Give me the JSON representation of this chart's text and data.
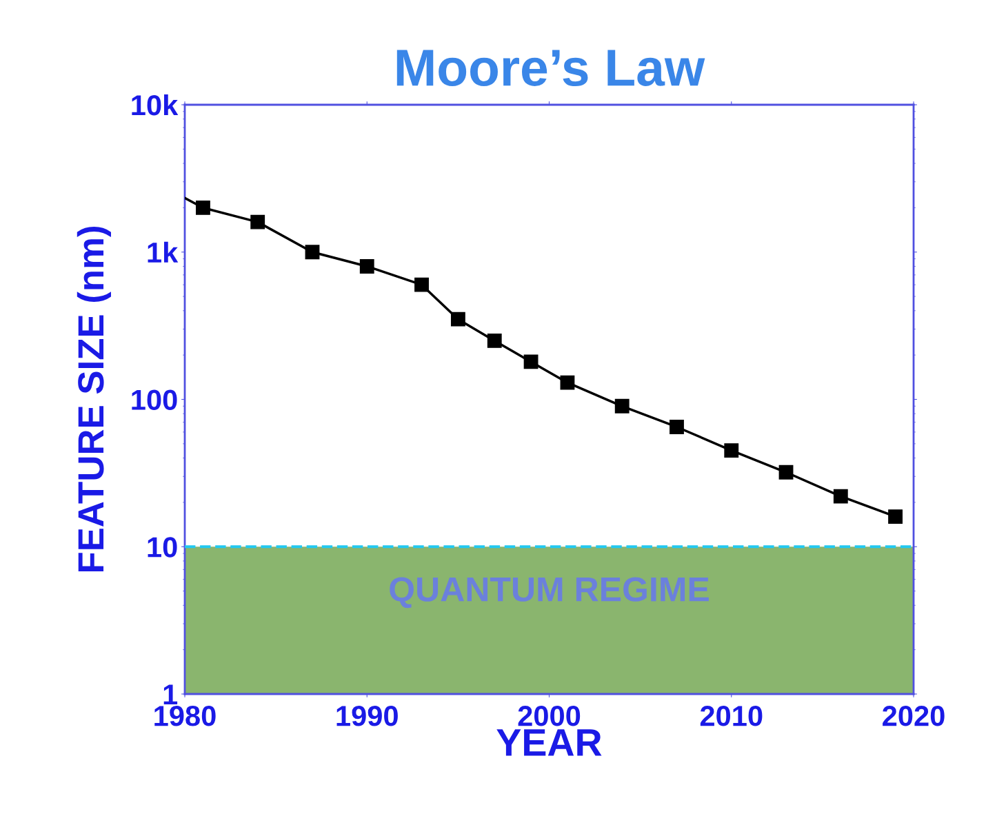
{
  "chart_data": {
    "type": "line",
    "title": "Moore’s Law",
    "xlabel": "YEAR",
    "ylabel": "FEATURE SIZE (nm)",
    "log": "y",
    "xlim": [
      1980,
      2020
    ],
    "xticks": [
      1980,
      1990,
      2000,
      2010,
      2020
    ],
    "ylim": [
      1,
      10000
    ],
    "yticks": [
      1,
      10,
      100,
      {
        "value": 1000,
        "label": "1k"
      },
      {
        "value": 10000,
        "label": "10k"
      }
    ],
    "grid": false,
    "line_style": "solid",
    "series": [
      {
        "color": "#000000",
        "x": [
          1980,
          1981
        ],
        "values": [
          2330,
          2000
        ]
      },
      {
        "color": "#000000",
        "marker": "square",
        "x": [
          1981,
          1984,
          1987,
          1990,
          1993,
          1995,
          1997,
          1999,
          2001,
          2004,
          2007,
          2010,
          2013,
          2016,
          2019
        ],
        "values": [
          2000,
          1600,
          1000,
          800,
          600,
          350,
          250,
          180,
          130,
          90,
          65,
          45,
          32,
          22,
          16
        ]
      }
    ],
    "bands": [
      {
        "axis": "y",
        "from": 1,
        "to": 10,
        "label": "QUANTUM REGIME",
        "color": "#8ab56e"
      }
    ],
    "ref_lines": [
      {
        "axis": "y",
        "value": 10,
        "color": "#22c8f0",
        "line_style": "dashed"
      }
    ]
  }
}
